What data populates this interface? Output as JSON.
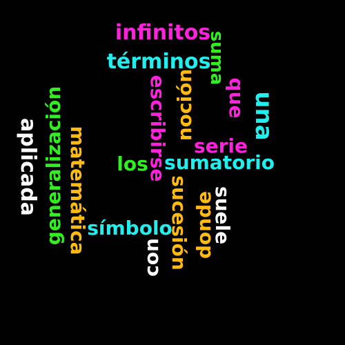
{
  "colors": {
    "background": "#000000",
    "magenta": "#ff22dd",
    "cyan": "#22eeee",
    "orange": "#ffbb11",
    "green": "#33ee22",
    "white": "#ffffff"
  },
  "words": {
    "infinitos": "infinitos",
    "terminos": "términos",
    "suma": "suma",
    "escribirse": "escribirse",
    "nocion": "noción",
    "que": "que",
    "una": "una",
    "aplicada": "aplicada",
    "generalizacion": "generalización",
    "matematica": "matemática",
    "serie": "serie",
    "los": "los",
    "sumatorio": "sumatorio",
    "simbolo": "símbolo",
    "con": "con",
    "sucesion": "sucesión",
    "donde": "donde",
    "suele": "suele"
  }
}
